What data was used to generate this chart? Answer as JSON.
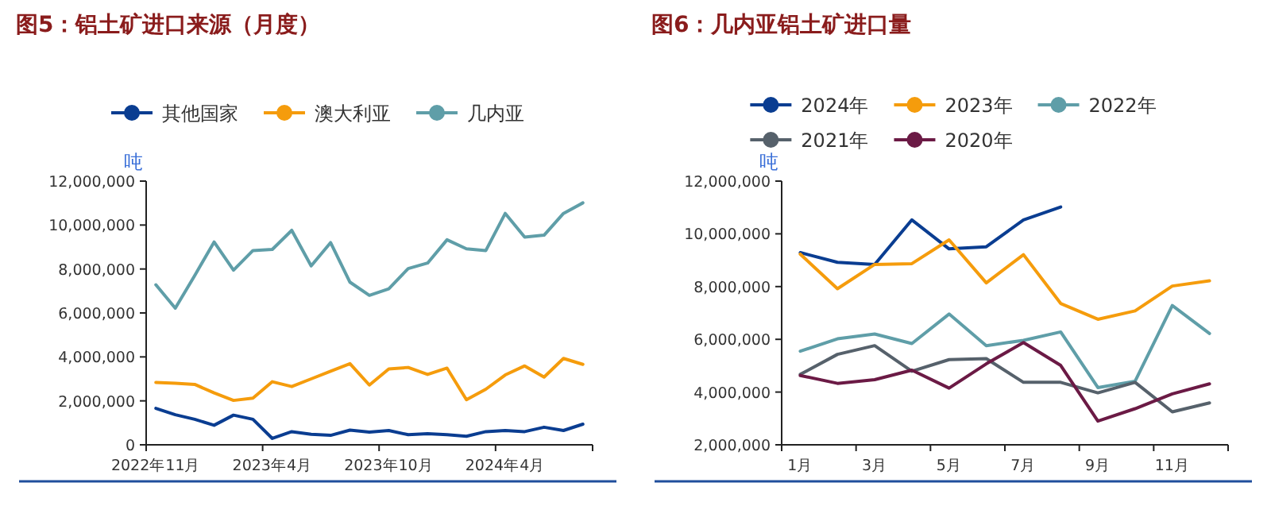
{
  "chart_data": [
    {
      "type": "line",
      "title": "图5：铝土矿进口来源（月度）",
      "ylabel": "吨",
      "legend": "top",
      "categories": [
        "2022年11月",
        null,
        null,
        null,
        null,
        null,
        "2023年4月",
        null,
        null,
        null,
        null,
        null,
        "2023年10月",
        null,
        null,
        null,
        null,
        null,
        "2024年4月",
        null,
        null,
        null,
        null
      ],
      "ylim": [
        0,
        12000000
      ],
      "yticks": [
        {
          "value": 0,
          "label": "0"
        },
        {
          "value": 2000000,
          "label": "2,000,000"
        },
        {
          "value": 4000000,
          "label": "4,000,000"
        },
        {
          "value": 6000000,
          "label": "6,000,000"
        },
        {
          "value": 8000000,
          "label": "8,000,000"
        },
        {
          "value": 10000000,
          "label": "10,000,000"
        },
        {
          "value": 12000000,
          "label": "12,000,000"
        }
      ],
      "series": [
        {
          "name": "其他国家",
          "color": "#0a3d91",
          "values": [
            1660000,
            1370000,
            1160000,
            890000,
            1350000,
            1160000,
            290000,
            600000,
            480000,
            430000,
            670000,
            580000,
            650000,
            460000,
            510000,
            460000,
            390000,
            600000,
            650000,
            600000,
            800000,
            650000,
            940000
          ]
        },
        {
          "name": "澳大利亚",
          "color": "#f59c0c",
          "values": [
            2840000,
            2800000,
            2750000,
            2360000,
            2020000,
            2120000,
            2870000,
            2650000,
            3000000,
            3350000,
            3690000,
            2720000,
            3450000,
            3520000,
            3200000,
            3490000,
            2050000,
            2530000,
            3180000,
            3590000,
            3080000,
            3930000,
            3660000
          ]
        },
        {
          "name": "几内亚",
          "color": "#5f9ea8",
          "values": [
            7280000,
            6220000,
            7700000,
            9230000,
            7950000,
            8840000,
            8890000,
            9760000,
            8140000,
            9200000,
            7400000,
            6800000,
            7100000,
            8020000,
            8270000,
            9330000,
            8920000,
            8840000,
            10530000,
            9450000,
            9540000,
            10530000,
            11010000
          ]
        }
      ]
    },
    {
      "type": "line",
      "title": "图6：几内亚铝土矿进口量",
      "ylabel": "吨",
      "legend": "top",
      "categories": [
        "1月",
        null,
        "3月",
        null,
        "5月",
        null,
        "7月",
        null,
        "9月",
        null,
        "11月",
        null
      ],
      "ylim": [
        2000000,
        12000000
      ],
      "yticks": [
        {
          "value": 2000000,
          "label": "2,000,000"
        },
        {
          "value": 4000000,
          "label": "4,000,000"
        },
        {
          "value": 6000000,
          "label": "6,000,000"
        },
        {
          "value": 8000000,
          "label": "8,000,000"
        },
        {
          "value": 10000000,
          "label": "10,000,000"
        },
        {
          "value": 12000000,
          "label": "12,000,000"
        }
      ],
      "series": [
        {
          "name": "2024年",
          "color": "#0a3d91",
          "values": [
            9290000,
            8920000,
            8840000,
            10530000,
            9430000,
            9510000,
            10530000,
            11020000,
            null,
            null,
            null,
            null
          ]
        },
        {
          "name": "2023年",
          "color": "#f59c0c",
          "values": [
            9230000,
            7920000,
            8840000,
            8870000,
            9770000,
            8140000,
            9210000,
            7360000,
            6760000,
            7080000,
            8020000,
            8220000
          ]
        },
        {
          "name": "2022年",
          "color": "#5f9ea8",
          "values": [
            5550000,
            6020000,
            6200000,
            5840000,
            6960000,
            5760000,
            5960000,
            6280000,
            4170000,
            4410000,
            7280000,
            6220000
          ]
        },
        {
          "name": "2021年",
          "color": "#56616b",
          "values": [
            4670000,
            5430000,
            5760000,
            4790000,
            5230000,
            5270000,
            4370000,
            4370000,
            3970000,
            4370000,
            3250000,
            3590000
          ]
        },
        {
          "name": "2020年",
          "color": "#6b1a45",
          "values": [
            4630000,
            4330000,
            4470000,
            4830000,
            4150000,
            5070000,
            5880000,
            5010000,
            2900000,
            3370000,
            3930000,
            4310000
          ]
        }
      ]
    }
  ]
}
